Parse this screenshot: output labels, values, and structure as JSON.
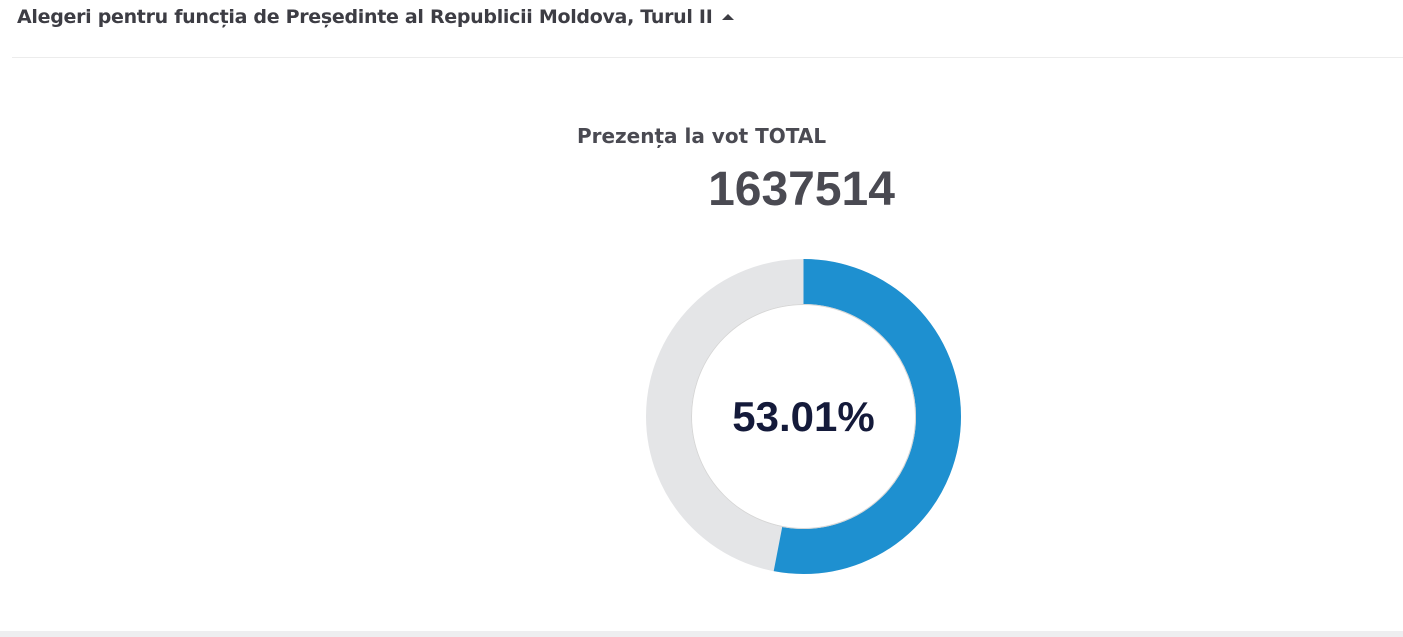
{
  "header": {
    "title": "Alegeri pentru funcția de Președinte al Republicii Moldova, Turul II",
    "toggle_icon": "caret-up-icon"
  },
  "turnout": {
    "label": "Prezența la vot TOTAL",
    "total": "1637514",
    "percent_label": "53.01%",
    "percent_value": 53.01
  },
  "colors": {
    "progress": "#1e90d0",
    "track": "#e4e5e7",
    "inner_ring": "#d6d6d6",
    "text_dark": "#4a4a52",
    "percent_text": "#141a3a"
  }
}
